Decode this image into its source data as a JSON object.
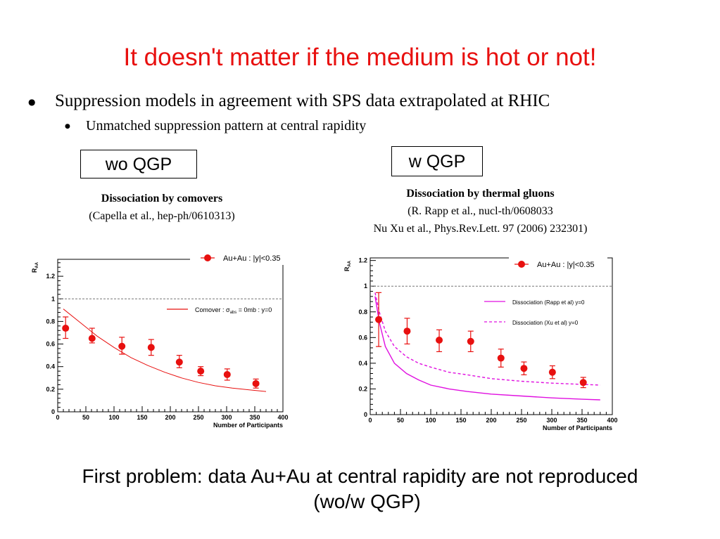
{
  "slide": {
    "title": "It doesn't matter if the medium is hot or not!",
    "bullet1": "Suppression models in agreement with SPS data extrapolated  at RHIC",
    "bullet2": "Unmatched suppression pattern at central rapidity",
    "box_left": "wo QGP",
    "box_right": "w QGP",
    "caption_left": {
      "line1": "Dissociation by comovers",
      "line2": "(Capella et al., hep-ph/0610313)"
    },
    "caption_right": {
      "line1": "Dissociation by thermal gluons",
      "line2": "(R. Rapp et al., nucl-th/0608033",
      "line3": "Nu Xu et al., Phys.Rev.Lett. 97 (2006) 232301)"
    },
    "conclusion_line1": "First problem: data Au+Au at central rapidity are not reproduced",
    "conclusion_line2": "(wo/w QGP)"
  },
  "colors": {
    "title": "#e8100f",
    "data": "#e8100f",
    "comover": "#e8100f",
    "dissociation": "#e010e0"
  },
  "chart_data": [
    {
      "type": "scatter",
      "xlabel": "Number of Participants",
      "ylabel": "R_AA",
      "xlim": [
        0,
        400
      ],
      "ylim": [
        0,
        1.35
      ],
      "xticks": [
        0,
        50,
        100,
        150,
        200,
        250,
        300,
        350,
        400
      ],
      "yticks": [
        0,
        0.2,
        0.4,
        0.6,
        0.8,
        1,
        1.2
      ],
      "reference_line": 1,
      "series": [
        {
          "name": "Au+Au : |y|<0.35",
          "kind": "points",
          "x": [
            14,
            61,
            114,
            166,
            216,
            254,
            301,
            352
          ],
          "y": [
            0.74,
            0.65,
            0.58,
            0.57,
            0.44,
            0.36,
            0.33,
            0.25
          ],
          "err_lo": [
            0.09,
            0.04,
            0.07,
            0.07,
            0.05,
            0.04,
            0.05,
            0.04
          ],
          "err_hi": [
            0.1,
            0.09,
            0.08,
            0.07,
            0.06,
            0.04,
            0.05,
            0.04
          ]
        },
        {
          "name": "Comover : σ_abs = 0mb : y=0",
          "kind": "line",
          "x": [
            10,
            40,
            70,
            100,
            130,
            160,
            190,
            220,
            250,
            280,
            310,
            340,
            370
          ],
          "y": [
            0.91,
            0.79,
            0.67,
            0.57,
            0.48,
            0.41,
            0.35,
            0.3,
            0.26,
            0.23,
            0.21,
            0.195,
            0.18
          ]
        }
      ]
    },
    {
      "type": "scatter",
      "xlabel": "Number of Participants",
      "ylabel": "R_AA",
      "xlim": [
        0,
        400
      ],
      "ylim": [
        0,
        1.22
      ],
      "xticks": [
        0,
        50,
        100,
        150,
        200,
        250,
        300,
        350,
        400
      ],
      "yticks": [
        0,
        0.2,
        0.4,
        0.6,
        0.8,
        1,
        1.2
      ],
      "reference_line": 1,
      "series": [
        {
          "name": "Au+Au : |y|<0.35",
          "kind": "points",
          "x": [
            14,
            61,
            114,
            166,
            216,
            254,
            301,
            352
          ],
          "y": [
            0.74,
            0.65,
            0.58,
            0.57,
            0.44,
            0.36,
            0.33,
            0.25
          ],
          "err_lo": [
            0.21,
            0.1,
            0.09,
            0.08,
            0.07,
            0.05,
            0.05,
            0.04
          ],
          "err_hi": [
            0.21,
            0.1,
            0.08,
            0.08,
            0.07,
            0.05,
            0.05,
            0.04
          ]
        },
        {
          "name": "Dissociation (Rapp et al) y=0",
          "kind": "line",
          "x": [
            8,
            15,
            25,
            40,
            60,
            80,
            100,
            130,
            160,
            200,
            250,
            300,
            350,
            380
          ],
          "y": [
            0.92,
            0.72,
            0.53,
            0.4,
            0.32,
            0.27,
            0.23,
            0.2,
            0.18,
            0.16,
            0.145,
            0.13,
            0.12,
            0.115
          ]
        },
        {
          "name": "Dissociation (Xu et al) y=0",
          "kind": "dashed",
          "x": [
            8,
            15,
            25,
            40,
            60,
            80,
            100,
            130,
            160,
            200,
            250,
            300,
            350,
            380
          ],
          "y": [
            0.95,
            0.8,
            0.65,
            0.53,
            0.45,
            0.4,
            0.37,
            0.33,
            0.31,
            0.28,
            0.26,
            0.245,
            0.235,
            0.23
          ]
        }
      ]
    }
  ]
}
